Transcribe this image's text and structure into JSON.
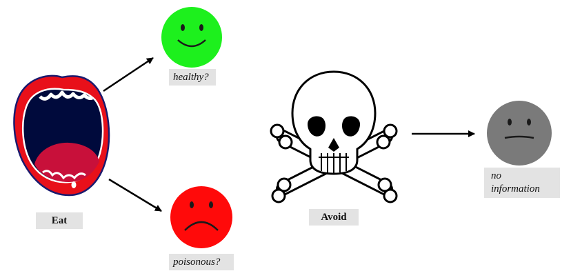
{
  "labels": {
    "eat": "Eat",
    "avoid": "Avoid",
    "healthy": "healthy?",
    "poisonous": "poisonous?",
    "no_information_line1": "no",
    "no_information_line2": "information"
  },
  "colors": {
    "lip_red": "#e8101a",
    "mouth_dark": "#000a3c",
    "tongue": "#c8103a",
    "outline_blue": "#1a1a6e",
    "happy_green": "#1df01d",
    "sad_red": "#ff0a0a",
    "neutral_gray": "#7a7a7a",
    "label_bg": "#e3e3e3",
    "arrow": "#000000"
  },
  "icons": {
    "mouth": "open-mouth-icon",
    "skull": "skull-and-crossbones-icon",
    "happy_face": "smiley-face-icon",
    "sad_face": "frowning-face-icon",
    "neutral_face": "neutral-face-icon"
  }
}
